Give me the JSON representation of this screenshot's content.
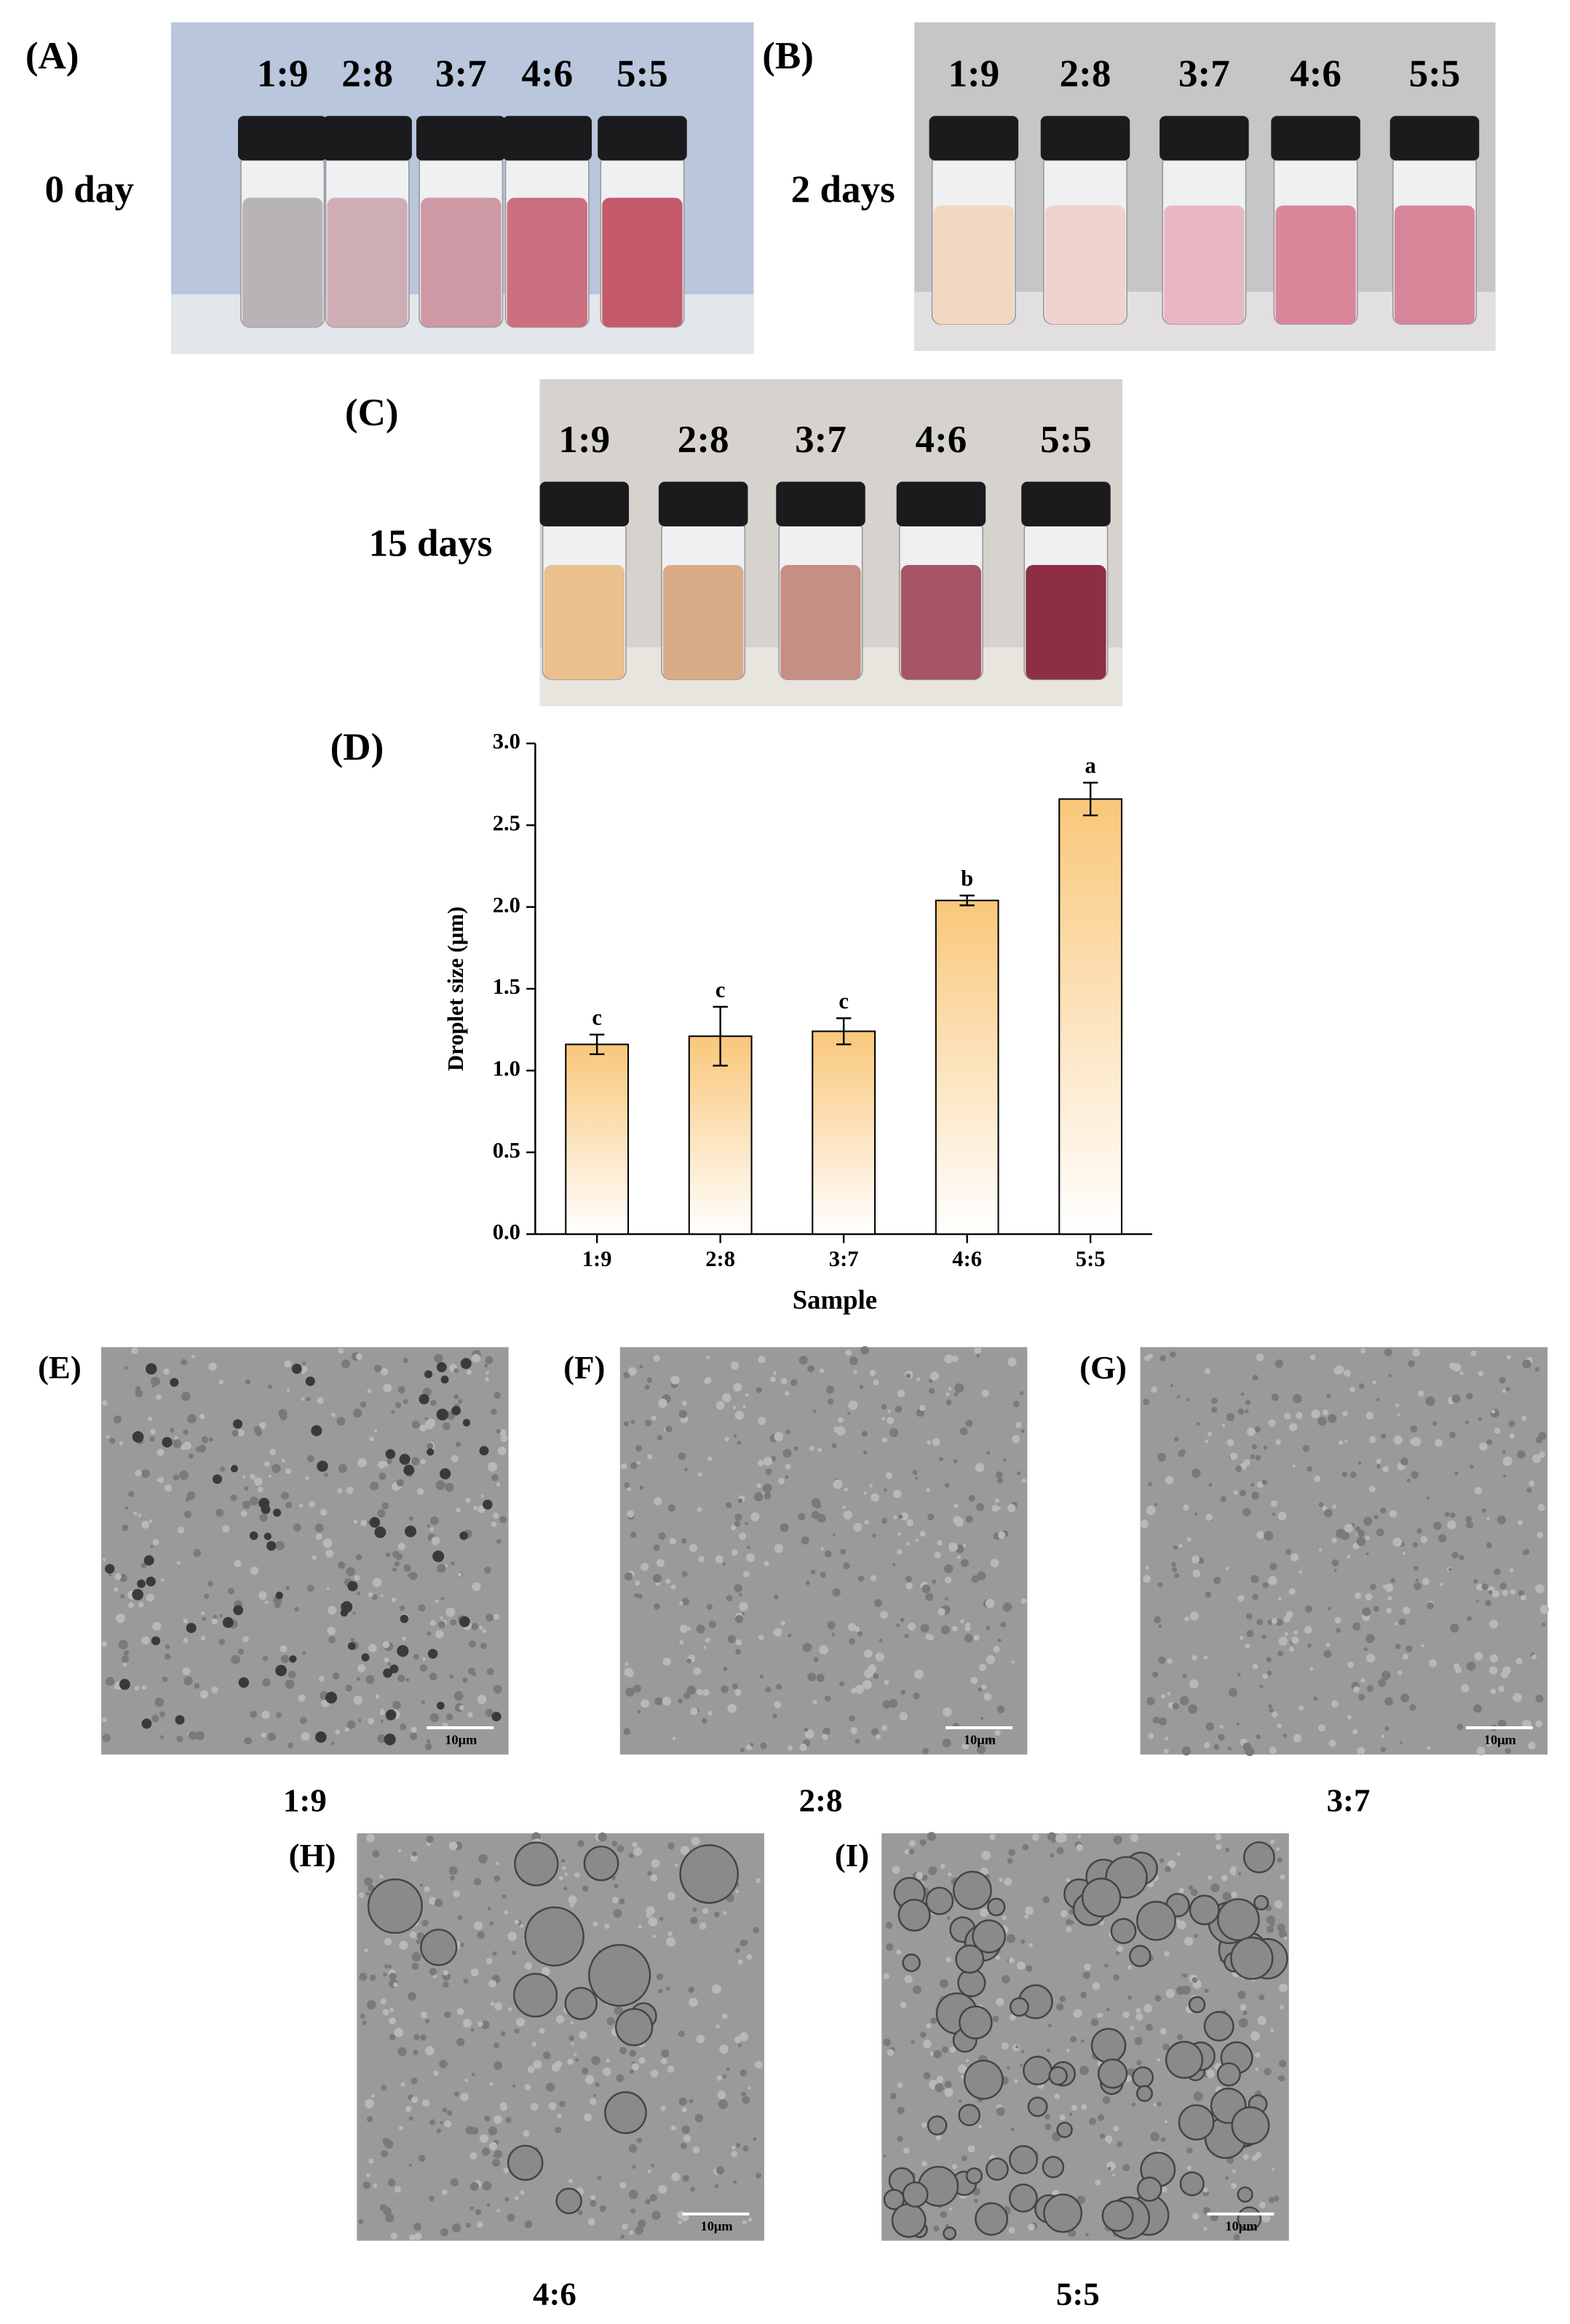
{
  "panels": [
    {
      "label": "(A)",
      "caption": "0 day",
      "vials": [
        "1:9",
        "2:8",
        "3:7",
        "4:6",
        "5:5"
      ]
    },
    {
      "label": "(B)",
      "caption": "2 days",
      "vials": [
        "1:9",
        "2:8",
        "3:7",
        "4:6",
        "5:5"
      ]
    },
    {
      "label": "(C)",
      "caption": "15 days",
      "vials": [
        "1:9",
        "2:8",
        "3:7",
        "4:6",
        "5:5"
      ]
    }
  ],
  "chart_label": "(D)",
  "chart_data": {
    "type": "bar",
    "x_label": "Sample",
    "y_label": "Droplet size (μm)",
    "categories": [
      "1:9",
      "2:8",
      "3:7",
      "4:6",
      "5:5"
    ],
    "values": [
      1.16,
      1.21,
      1.24,
      2.04,
      2.66
    ],
    "errors": [
      0.06,
      0.18,
      0.08,
      0.03,
      0.1
    ],
    "annotations": [
      "c",
      "c",
      "c",
      "b",
      "a"
    ],
    "color": "#f9c77a",
    "ylim": [
      0,
      3
    ],
    "yticks": [
      {
        "value": 0,
        "label": "0.0"
      },
      0.5,
      {
        "value": 1,
        "label": "1.0"
      },
      1.5,
      {
        "value": 2,
        "label": "2.0"
      },
      2.5,
      {
        "value": 3,
        "label": "3.0"
      }
    ]
  },
  "micrographs": [
    {
      "label": "(E)",
      "caption": "1:9",
      "scale": "10μm"
    },
    {
      "label": "(F)",
      "caption": "2:8",
      "scale": "10μm"
    },
    {
      "label": "(G)",
      "caption": "3:7",
      "scale": "10μm"
    },
    {
      "label": "(H)",
      "caption": "4:6",
      "scale": "10μm"
    },
    {
      "label": "(I)",
      "caption": "5:5",
      "scale": "10μm"
    }
  ]
}
